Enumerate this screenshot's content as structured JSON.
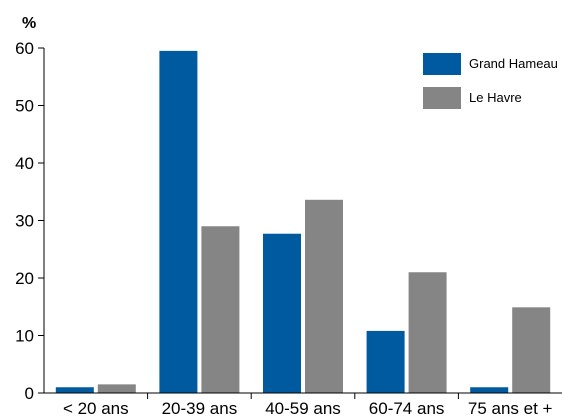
{
  "chart_data": {
    "type": "bar",
    "title": "",
    "xlabel": "",
    "ylabel": "%",
    "ylim": [
      0,
      60
    ],
    "yticks": [
      0,
      10,
      20,
      30,
      40,
      50,
      60
    ],
    "grid": false,
    "legend_position": "top-right",
    "categories": [
      "< 20 ans",
      "20-39 ans",
      "40-59 ans",
      "60-74 ans",
      "75 ans et +"
    ],
    "series": [
      {
        "name": "Grand Hameau",
        "color": "#005aa0",
        "values": [
          1,
          59.5,
          27.7,
          10.8,
          1
        ]
      },
      {
        "name": "Le Havre",
        "color": "#858585",
        "values": [
          1.5,
          29,
          33.6,
          21,
          14.9
        ]
      }
    ]
  }
}
